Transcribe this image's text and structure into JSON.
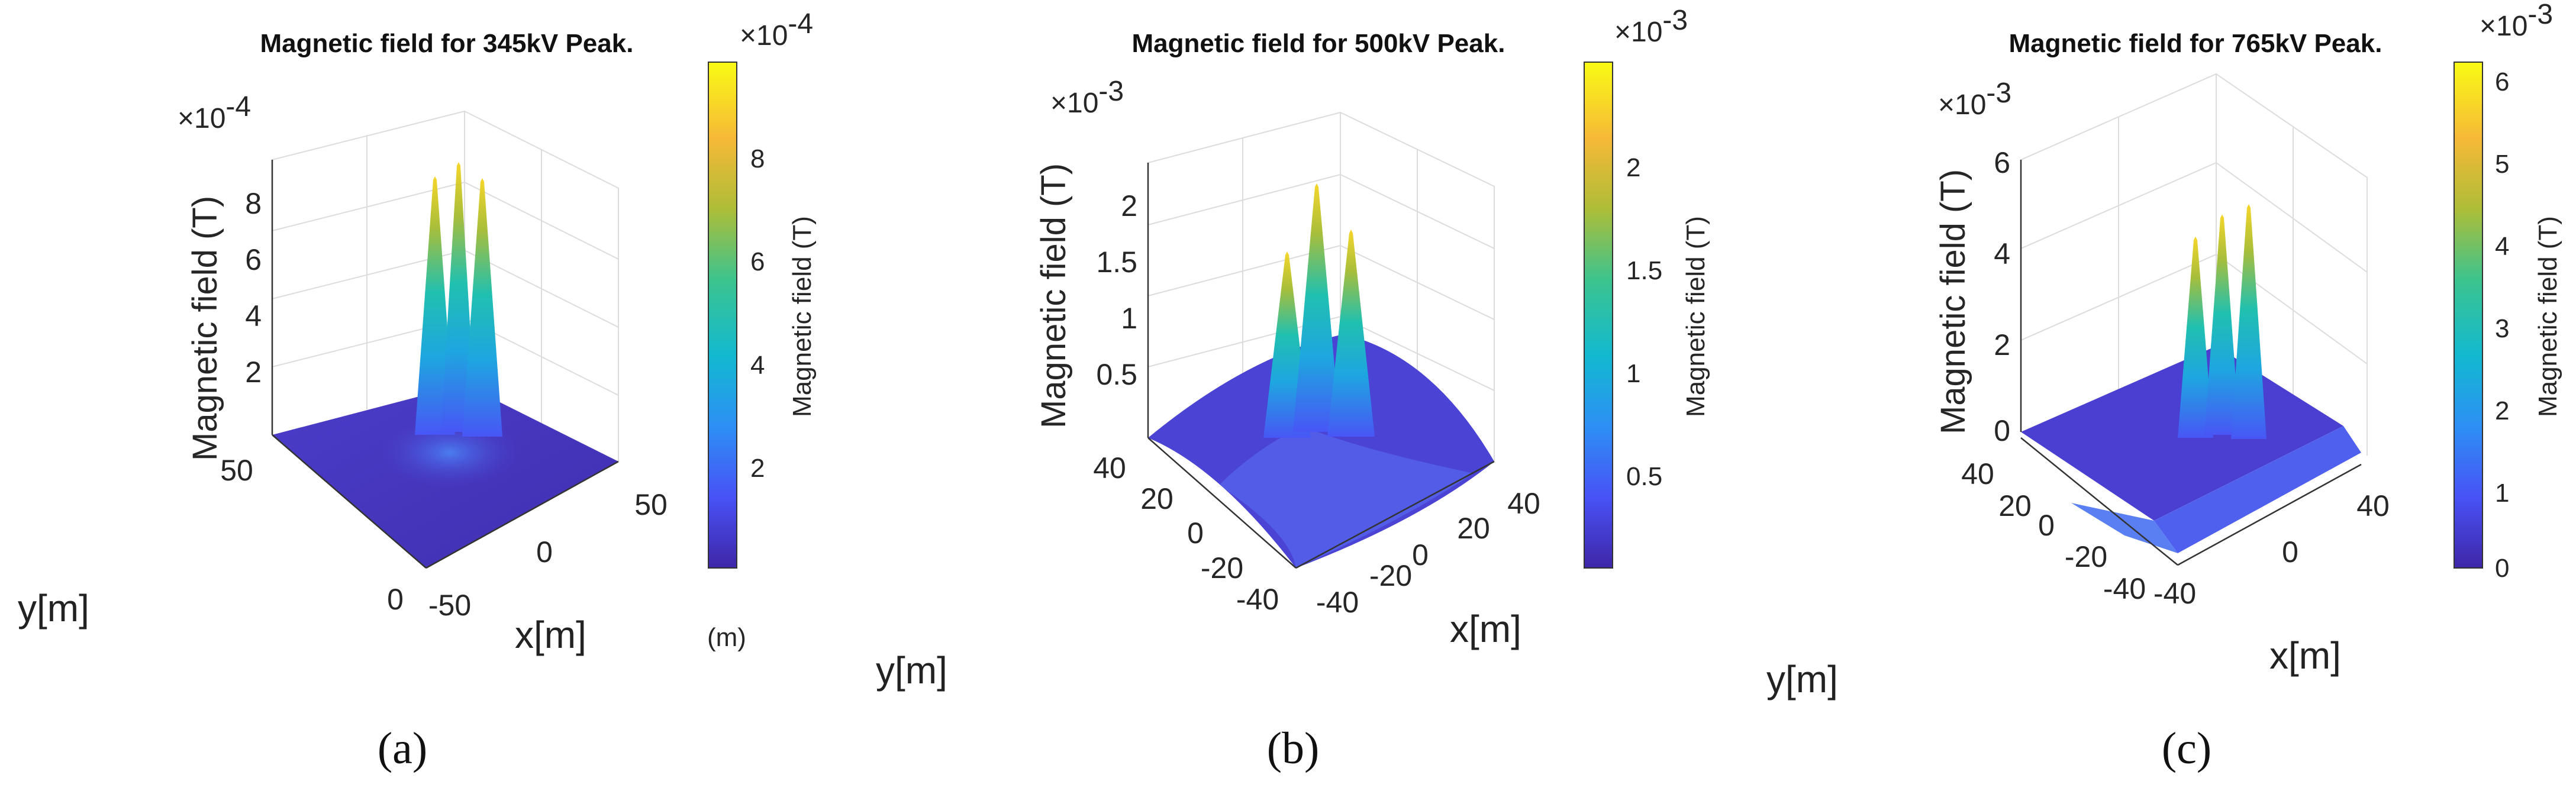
{
  "chart_data": [
    {
      "type": "surface3d",
      "title": "Magnetic field for 345kV Peak.",
      "zlabel": "Magnetic field (T)",
      "colorbar_label": "Magnetic field (T)",
      "xlabel": "x[m]",
      "ylabel": "y[m]",
      "z_multiplier": "×10",
      "z_exponent": "-4",
      "cb_multiplier": "×10",
      "cb_exponent": "-4",
      "z_ticks": [
        "2",
        "4",
        "6",
        "8"
      ],
      "cb_ticks": [
        "2",
        "4",
        "6",
        "8"
      ],
      "x_ticks": [
        "-50",
        "0",
        "50"
      ],
      "y_ticks": [
        "0",
        "50"
      ],
      "extra_label": "(m)",
      "peak_values_e4": [
        9.2,
        9.6,
        9.2
      ],
      "peak_count": 3,
      "colormap": [
        "#3e26a8",
        "#4852f6",
        "#2d8ff5",
        "#12b9cf",
        "#3cc48e",
        "#aebd37",
        "#f6b937",
        "#f9fb15"
      ],
      "subfigure_label": "(a)"
    },
    {
      "type": "surface3d",
      "title": "Magnetic field for 500kV Peak.",
      "zlabel": "Magnetic field (T)",
      "colorbar_label": "Magnetic field (T)",
      "xlabel": "x[m]",
      "ylabel": "y[m]",
      "z_multiplier": "×10",
      "z_exponent": "-3",
      "cb_multiplier": "×10",
      "cb_exponent": "-3",
      "z_ticks": [
        "0.5",
        "1",
        "1.5",
        "2"
      ],
      "cb_ticks": [
        "0.5",
        "1",
        "1.5",
        "2"
      ],
      "x_ticks": [
        "-40",
        "-20",
        "0",
        "20",
        "40"
      ],
      "y_ticks": [
        "-40",
        "-20",
        "0",
        "20",
        "40"
      ],
      "peak_values_e3": [
        1.8,
        2.4,
        2.0
      ],
      "peak_count": 3,
      "subfigure_label": "(b)"
    },
    {
      "type": "surface3d",
      "title": "Magnetic field for 765kV Peak.",
      "zlabel": "Magnetic field (T)",
      "colorbar_label": "Magnetic field (T)",
      "xlabel": "x[m]",
      "ylabel": "y[m]",
      "z_multiplier": "×10",
      "z_exponent": "-3",
      "cb_multiplier": "×10",
      "cb_exponent": "-3",
      "z_ticks": [
        "0",
        "2",
        "4",
        "6"
      ],
      "cb_ticks": [
        "0",
        "1",
        "2",
        "3",
        "4",
        "5",
        "6"
      ],
      "x_ticks": [
        "-40",
        "0",
        "40"
      ],
      "y_ticks": [
        "-40",
        "-20",
        "0",
        "20",
        "40"
      ],
      "peak_values_e3": [
        4.2,
        4.6,
        4.9
      ],
      "peak_count": 3,
      "subfigure_label": "(c)"
    }
  ]
}
